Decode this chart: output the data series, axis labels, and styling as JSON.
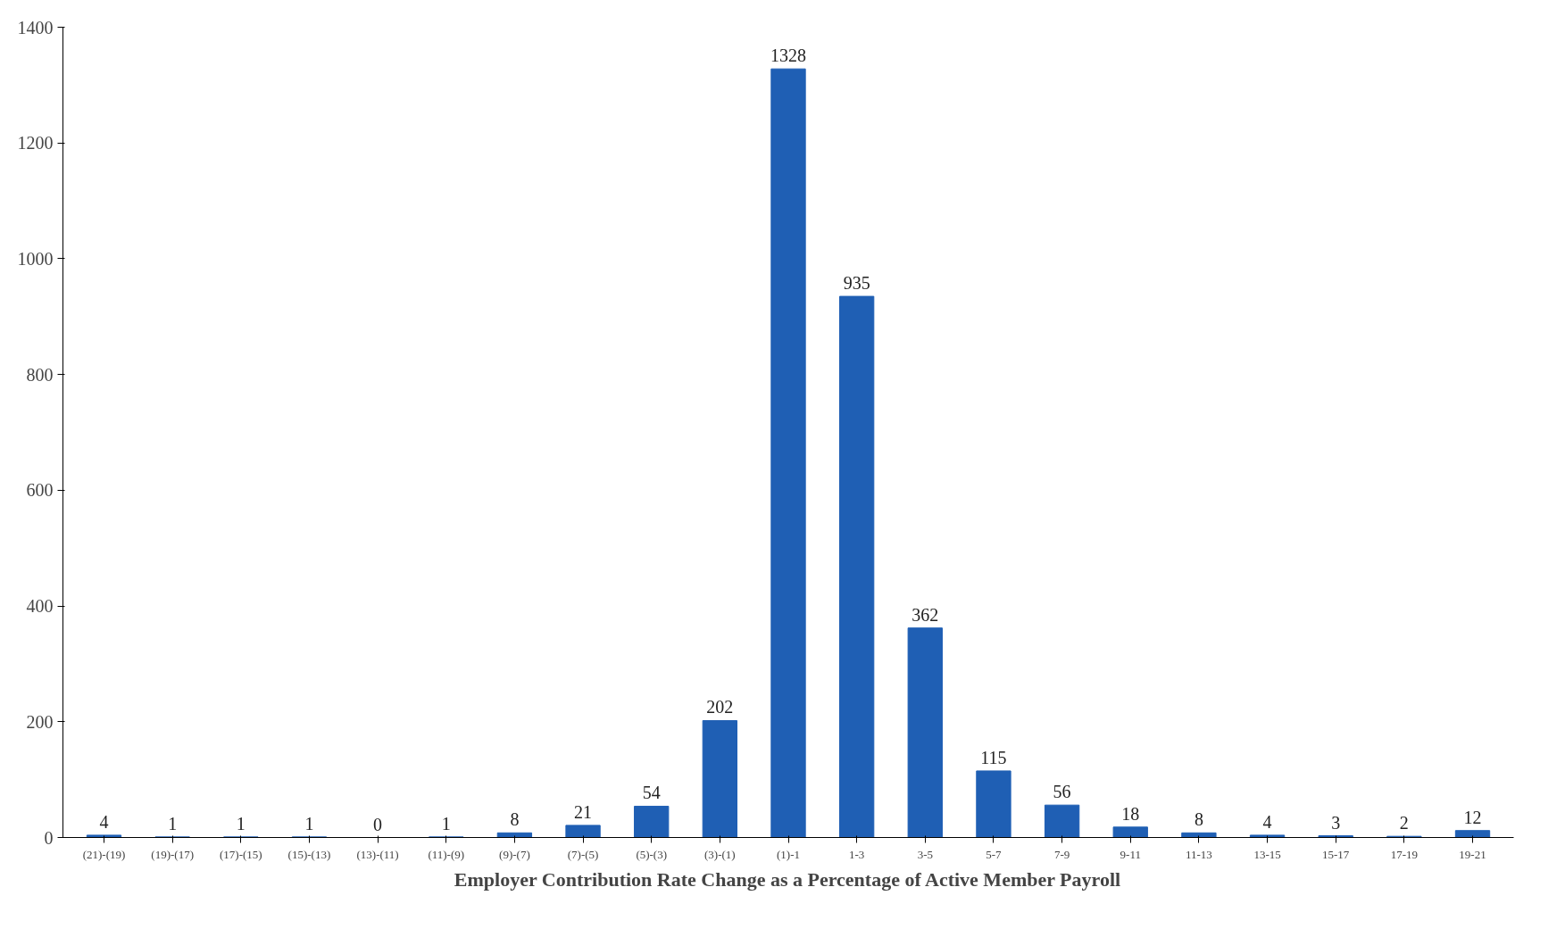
{
  "chart_data": {
    "type": "bar",
    "xlabel": "Employer Contribution Rate Change as a Percentage of Active Member Payroll",
    "categories": [
      "(21)-(19)",
      "(19)-(17)",
      "(17)-(15)",
      "(15)-(13)",
      "(13)-(11)",
      "(11)-(9)",
      "(9)-(7)",
      "(7)-(5)",
      "(5)-(3)",
      "(3)-(1)",
      "(1)-1",
      "1-3",
      "3-5",
      "5-7",
      "7-9",
      "9-11",
      "11-13",
      "13-15",
      "15-17",
      "17-19",
      "19-21"
    ],
    "values": [
      4,
      1,
      1,
      1,
      0,
      1,
      8,
      21,
      54,
      202,
      1328,
      935,
      362,
      115,
      56,
      18,
      8,
      4,
      3,
      2,
      12
    ],
    "color": "#1f5fb4",
    "ylim": [
      0,
      1400
    ],
    "yticks": [
      0,
      200,
      400,
      600,
      800,
      1000,
      1200,
      1400
    ],
    "grid": false,
    "data_labels": true
  }
}
